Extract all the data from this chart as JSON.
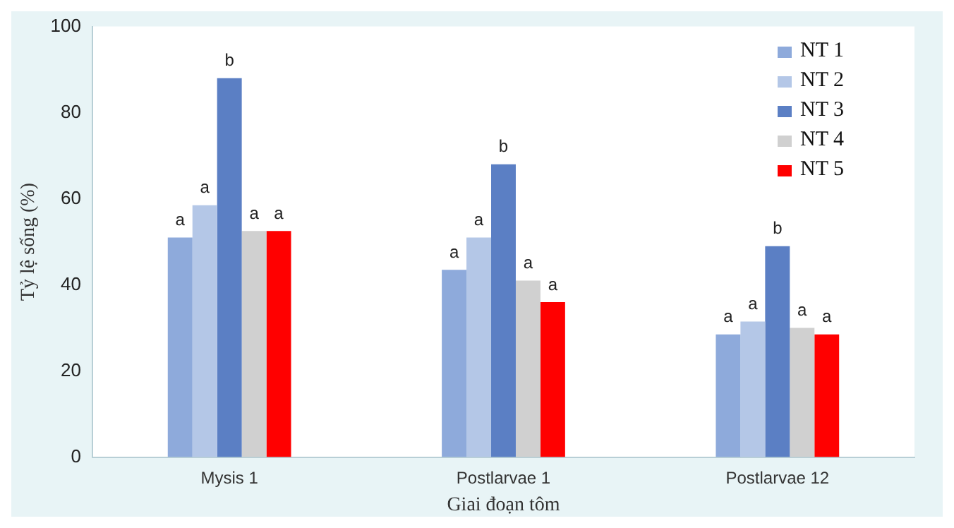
{
  "chart_data": {
    "type": "bar",
    "xlabel": "Giai đoạn tôm",
    "ylabel": "Tỷ lệ sống (%)",
    "categories": [
      "Mysis 1",
      "Postlarvae 1",
      "Postlarvae 12"
    ],
    "series": [
      {
        "name": "NT 1",
        "color": "#8eaadb",
        "values": [
          51,
          43.5,
          28.5
        ],
        "value_labels": [
          "a",
          "a",
          "a"
        ]
      },
      {
        "name": "NT 2",
        "color": "#b4c7e7",
        "values": [
          58.5,
          51,
          31.5
        ],
        "value_labels": [
          "a",
          "a",
          "a"
        ]
      },
      {
        "name": "NT 3",
        "color": "#5b7fc4",
        "values": [
          88,
          68,
          49
        ],
        "value_labels": [
          "b",
          "b",
          "b"
        ]
      },
      {
        "name": "NT 4",
        "color": "#d0d0d0",
        "values": [
          52.5,
          41,
          30
        ],
        "value_labels": [
          "a",
          "a",
          "a"
        ]
      },
      {
        "name": "NT 5",
        "color": "#ff0000",
        "values": [
          52.5,
          36,
          28.5
        ],
        "value_labels": [
          "a",
          "a",
          "a"
        ]
      }
    ],
    "ylim": [
      0,
      100
    ],
    "yticks": [
      0,
      20,
      40,
      60,
      80,
      100
    ],
    "grid": false,
    "legend": "top right"
  }
}
